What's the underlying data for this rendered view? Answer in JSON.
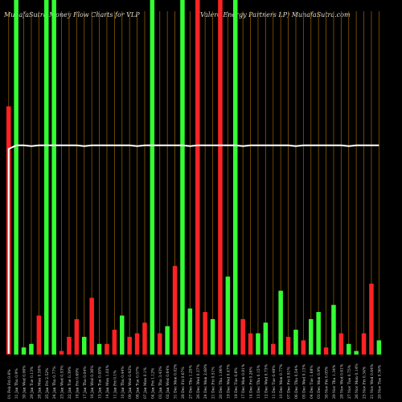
{
  "header": {
    "left": "MunafaSutra  Money Flow  Charts for VLP",
    "right": "(Valero  Energy Partners LP) MunafaSutra.com"
  },
  "colors": {
    "background": "#000000",
    "gridline": "#8B5A00",
    "up": "#33ff33",
    "down": "#ff2222",
    "price_line": "#ffffff"
  },
  "chart_data": {
    "type": "bar",
    "ylim": [
      0,
      100
    ],
    "grid": true,
    "categories": [
      "01 Feb Fri 0.6%",
      "31 Jan Thu 0.9%",
      "30 Jan Wed 0.06%",
      "29 Jan Tue 0.13%",
      "28 Jan Mon 0.59%",
      "25 Jan Fri 2.52%",
      "24 Jan Thu 0.77%",
      "23 Jan Wed 0.53%",
      "22 Jan Tue 0.39%",
      "18 Jan Fri 0.69%",
      "17 Jan Thu 0.04%",
      "16 Jan Wed 0.36%",
      "15 Jan Tue 0.45%",
      "14 Jan Mon 1.02%",
      "11 Jan Fri 0.1%",
      "10 Jan Thu 0.44%",
      "09 Jan Wed 0.92%",
      "08 Jan Tue 0.57%",
      "07 Jan Mon 0.1%",
      "04 Jan Fri 1.12%",
      "03 Jan Thu 3.43%",
      "02 Jan Wed 0.64%",
      "31 Dec Mon 0.02%",
      "28 Dec Fri 0.67%",
      "27 Dec Thu 1.25%",
      "26 Dec Wed 0.37%",
      "24 Dec Mon 2.68%",
      "21 Dec Fri 0.51%",
      "20 Dec Thu 1.06%",
      "19 Dec Wed 0.47%",
      "18 Dec Tue 0.6%",
      "17 Dec Mon 0.81%",
      "14 Dec Fri 0.26%",
      "13 Dec Thu 0.15%",
      "12 Dec Wed 0.73%",
      "11 Dec Tue 0.48%",
      "10 Dec Mon 0.77%",
      "07 Dec Fri 0.91%",
      "06 Dec Thu 0.54%",
      "05 Dec Wed 0.13%",
      "04 Dec Tue 1.68%",
      "03 Dec Mon 0.9%",
      "30 Nov Fri 0.05%",
      "29 Nov Thu 1.34%",
      "28 Nov Wed 0.61%",
      "27 Nov Tue 0.75%",
      "26 Nov Mon 0.14%",
      "23 Nov Fri 0.34%",
      "21 Nov Wed 0.64%",
      "20 Nov Tue 0.36%"
    ],
    "flow": [
      "down",
      "up",
      "up",
      "up",
      "down",
      "up",
      "up",
      "down",
      "down",
      "down",
      "up",
      "down",
      "up",
      "down",
      "down",
      "up",
      "down",
      "down",
      "down",
      "up",
      "down",
      "up",
      "down",
      "up",
      "up",
      "down",
      "down",
      "up",
      "down",
      "up",
      "up",
      "down",
      "down",
      "up",
      "up",
      "down",
      "up",
      "down",
      "up",
      "down",
      "up",
      "up",
      "down",
      "up",
      "down",
      "up",
      "up",
      "down",
      "down",
      "up"
    ],
    "values": [
      70,
      100,
      2,
      3,
      11,
      100,
      100,
      1,
      5,
      10,
      5,
      16,
      3,
      3,
      7,
      11,
      5,
      6,
      9,
      100,
      6,
      8,
      25,
      100,
      13,
      100,
      12,
      10,
      100,
      22,
      100,
      10,
      6,
      6,
      9,
      3,
      18,
      5,
      7,
      4,
      10,
      12,
      2,
      14,
      6,
      3,
      1,
      6,
      20,
      4
    ],
    "price_line": [
      58,
      59,
      59,
      59,
      59,
      59,
      59,
      59,
      59,
      59,
      59,
      59,
      59,
      59,
      59,
      59,
      59,
      59,
      59,
      59,
      59,
      59,
      59,
      59,
      59,
      59,
      59,
      59,
      59,
      59,
      59,
      59,
      59,
      59,
      59,
      59,
      59,
      59,
      59,
      59,
      59,
      59,
      59,
      59,
      59,
      59,
      59,
      59,
      59,
      59
    ]
  }
}
